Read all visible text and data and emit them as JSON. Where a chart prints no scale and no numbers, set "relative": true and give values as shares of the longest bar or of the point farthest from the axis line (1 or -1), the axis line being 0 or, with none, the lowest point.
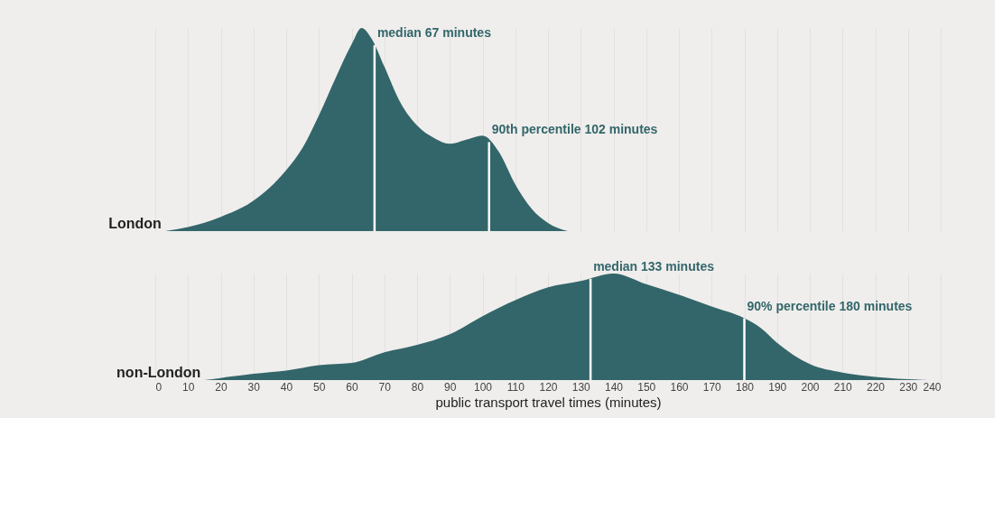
{
  "chart_data": [
    {
      "type": "area",
      "relative": true,
      "xlim": [
        0,
        240
      ],
      "xticks": [
        0,
        10,
        20,
        30,
        40,
        50,
        60,
        70,
        80,
        90,
        100,
        110,
        120,
        130,
        140,
        150,
        160,
        170,
        180,
        190,
        200,
        210,
        220,
        230,
        240
      ],
      "tick_labels": false,
      "grid": "x",
      "series": [
        {
          "name": "London",
          "color": "#33666a",
          "x": [
            3,
            10,
            20,
            30,
            40,
            45,
            50,
            55,
            60,
            63,
            66,
            70,
            75,
            80,
            85,
            90,
            95,
            100,
            105,
            110,
            115,
            120,
            126
          ],
          "values": [
            0,
            0.02,
            0.07,
            0.15,
            0.3,
            0.41,
            0.57,
            0.75,
            0.92,
            1.0,
            0.95,
            0.81,
            0.63,
            0.52,
            0.46,
            0.43,
            0.45,
            0.47,
            0.39,
            0.23,
            0.11,
            0.04,
            0
          ]
        }
      ],
      "ref_lines": [
        {
          "axis": "x",
          "value": 67,
          "label": "median 67 minutes",
          "color": "#ffffff"
        },
        {
          "axis": "x",
          "value": 102,
          "label": "90th percentile 102 minutes",
          "color": "#ffffff"
        }
      ]
    },
    {
      "type": "area",
      "relative": true,
      "xlim": [
        0,
        240
      ],
      "xticks": [
        0,
        10,
        20,
        30,
        40,
        50,
        60,
        70,
        80,
        90,
        100,
        110,
        120,
        130,
        140,
        150,
        160,
        170,
        180,
        190,
        200,
        210,
        220,
        230,
        240
      ],
      "xlabel": "public transport travel times (minutes)",
      "tick_labels": "x",
      "grid": "x",
      "series": [
        {
          "name": "non-London",
          "color": "#33666a",
          "x": [
            15,
            20,
            30,
            40,
            50,
            60,
            70,
            80,
            90,
            100,
            110,
            120,
            130,
            140,
            150,
            160,
            170,
            180,
            185,
            190,
            200,
            210,
            220,
            236
          ],
          "values": [
            0,
            0.02,
            0.06,
            0.09,
            0.14,
            0.16,
            0.26,
            0.33,
            0.43,
            0.6,
            0.75,
            0.87,
            0.93,
            1.0,
            0.9,
            0.8,
            0.69,
            0.58,
            0.49,
            0.35,
            0.15,
            0.07,
            0.03,
            0
          ]
        }
      ],
      "ref_lines": [
        {
          "axis": "x",
          "value": 133,
          "label": "median 133 minutes",
          "color": "#ffffff"
        },
        {
          "axis": "x",
          "value": 180,
          "label": "90% percentile 180 minutes",
          "color": "#ffffff"
        }
      ]
    }
  ]
}
